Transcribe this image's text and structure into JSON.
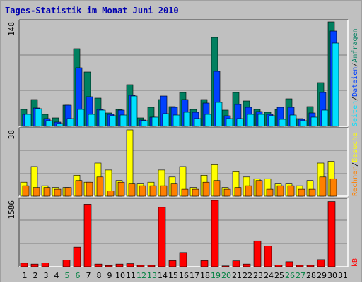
{
  "title": "Tages-Statistik im Monat Juni 2010",
  "colors": {
    "background": "#c0c0c0",
    "panel": "#c0c0c0",
    "gridline": "#808080",
    "anfragen": "#008060",
    "dateien": "#0040ff",
    "seiten": "#00e0ff",
    "besuche": "#ffff00",
    "rechner": "#ff8000",
    "kb": "#ff0000",
    "weekend_label": "#008040",
    "weekday_label": "#000000"
  },
  "chart_data": [
    {
      "type": "bar",
      "panel": "top",
      "ymax_label": "148",
      "ymax": 148,
      "right_labels": [
        "Seiten",
        "Dateien",
        "Anfragen"
      ],
      "right_separators": [
        "/",
        "/"
      ],
      "categories": [
        "1",
        "2",
        "3",
        "4",
        "5",
        "6",
        "7",
        "8",
        "9",
        "10",
        "11",
        "12",
        "13",
        "14",
        "15",
        "16",
        "17",
        "18",
        "19",
        "20",
        "21",
        "22",
        "23",
        "24",
        "25",
        "26",
        "27",
        "28",
        "29",
        "30",
        "31"
      ],
      "series": [
        {
          "name": "Anfragen",
          "values": [
            24,
            38,
            17,
            12,
            30,
            110,
            77,
            40,
            19,
            24,
            59,
            12,
            27,
            38,
            28,
            48,
            24,
            38,
            126,
            23,
            48,
            36,
            24,
            20,
            24,
            39,
            11,
            28,
            62,
            148,
            0
          ]
        },
        {
          "name": "Dateien",
          "values": [
            17,
            26,
            11,
            6,
            30,
            83,
            42,
            24,
            17,
            23,
            44,
            9,
            13,
            43,
            27,
            38,
            20,
            33,
            78,
            15,
            31,
            27,
            21,
            17,
            27,
            27,
            10,
            19,
            48,
            135,
            0
          ]
        },
        {
          "name": "Seiten",
          "values": [
            17,
            25,
            8,
            4,
            11,
            24,
            17,
            23,
            15,
            16,
            43,
            8,
            13,
            18,
            16,
            20,
            11,
            17,
            34,
            11,
            11,
            17,
            17,
            15,
            10,
            16,
            8,
            13,
            23,
            118,
            0
          ]
        }
      ]
    },
    {
      "type": "bar",
      "panel": "middle",
      "ymax_label": "38",
      "ymax": 38,
      "right_labels": [
        "Rechner",
        "Besuche"
      ],
      "right_separators": [
        "/"
      ],
      "categories": [
        "1",
        "2",
        "3",
        "4",
        "5",
        "6",
        "7",
        "8",
        "9",
        "10",
        "11",
        "12",
        "13",
        "14",
        "15",
        "16",
        "17",
        "18",
        "19",
        "20",
        "21",
        "22",
        "23",
        "24",
        "25",
        "26",
        "27",
        "28",
        "29",
        "30",
        "31"
      ],
      "series": [
        {
          "name": "Besuche",
          "values": [
            8,
            17,
            6,
            5,
            5,
            12,
            8,
            19,
            15,
            9,
            38,
            7,
            8,
            15,
            11,
            17,
            5,
            12,
            18,
            5,
            14,
            11,
            10,
            10,
            7,
            7,
            6,
            9,
            19,
            20,
            0
          ]
        },
        {
          "name": "Rechner",
          "values": [
            6,
            5,
            5,
            4,
            5,
            9,
            8,
            11,
            3,
            8,
            7,
            6,
            6,
            6,
            7,
            4,
            4,
            8,
            9,
            4,
            5,
            6,
            9,
            4,
            6,
            6,
            4,
            4,
            11,
            10,
            0
          ]
        }
      ]
    },
    {
      "type": "bar",
      "panel": "bottom",
      "ymax_label": "1586",
      "ymax": 1586,
      "right_labels": [
        "kB"
      ],
      "right_separators": [],
      "categories": [
        "1",
        "2",
        "3",
        "4",
        "5",
        "6",
        "7",
        "8",
        "9",
        "10",
        "11",
        "12",
        "13",
        "14",
        "15",
        "16",
        "17",
        "18",
        "19",
        "20",
        "21",
        "22",
        "23",
        "24",
        "25",
        "26",
        "27",
        "28",
        "29",
        "30",
        "31"
      ],
      "series": [
        {
          "name": "kB",
          "values": [
            87,
            65,
            95,
            0,
            160,
            470,
            1495,
            65,
            30,
            65,
            75,
            35,
            35,
            1420,
            145,
            340,
            0,
            145,
            1586,
            20,
            140,
            65,
            620,
            500,
            45,
            120,
            35,
            35,
            170,
            1560,
            0
          ]
        }
      ]
    }
  ],
  "x_axis": {
    "labels": [
      "1",
      "2",
      "3",
      "4",
      "5",
      "6",
      "7",
      "8",
      "9",
      "10",
      "11",
      "12",
      "13",
      "14",
      "15",
      "16",
      "17",
      "18",
      "19",
      "20",
      "21",
      "22",
      "23",
      "24",
      "25",
      "26",
      "27",
      "28",
      "29",
      "30",
      "31"
    ],
    "weekend_days": [
      "5",
      "6",
      "12",
      "13",
      "19",
      "20",
      "26",
      "27"
    ]
  }
}
